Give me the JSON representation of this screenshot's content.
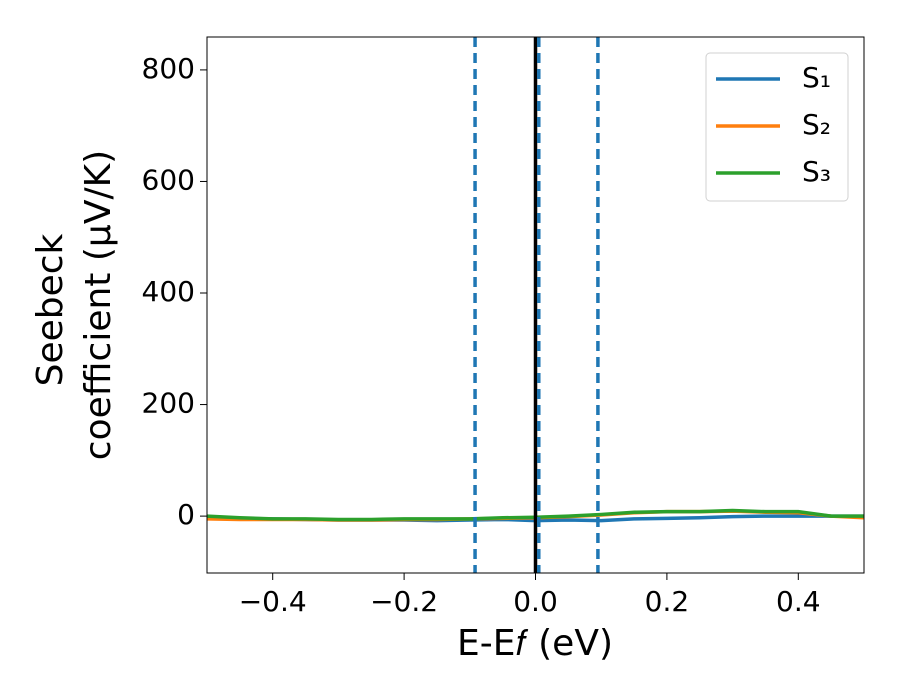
{
  "chart_data": {
    "type": "line",
    "xlabel": "E-E𝑓 (eV)",
    "ylabel": [
      "Seebeck",
      "coefficient  (μV/K)"
    ],
    "x": [
      -0.5,
      -0.45,
      -0.4,
      -0.35,
      -0.3,
      -0.25,
      -0.2,
      -0.15,
      -0.1,
      -0.05,
      0.0,
      0.05,
      0.1,
      0.15,
      0.2,
      0.25,
      0.3,
      0.35,
      0.4,
      0.45,
      0.5
    ],
    "series": [
      {
        "name": "S₁",
        "color": "#1f77b4",
        "values": [
          -3,
          -4,
          -5,
          -6,
          -7,
          -7,
          -7,
          -8,
          -7,
          -6,
          -8,
          -7,
          -8,
          -5,
          -4,
          -3,
          -1,
          0,
          0,
          0,
          0
        ]
      },
      {
        "name": "S₂",
        "color": "#ff7f0e",
        "values": [
          -5,
          -6,
          -6,
          -6,
          -7,
          -7,
          -6,
          -6,
          -5,
          -4,
          -3,
          -1,
          2,
          6,
          8,
          8,
          9,
          7,
          6,
          0,
          -3
        ]
      },
      {
        "name": "S₃",
        "color": "#2ca02c",
        "values": [
          0,
          -3,
          -5,
          -5,
          -6,
          -6,
          -5,
          -5,
          -5,
          -3,
          -2,
          0,
          3,
          7,
          8,
          8,
          10,
          8,
          8,
          0,
          0
        ]
      }
    ],
    "xlim": [
      -0.5,
      0.5
    ],
    "ylim": [
      -102,
      859
    ],
    "xticks": [
      {
        "value": -0.4,
        "label": "−0.4"
      },
      {
        "value": -0.2,
        "label": "−0.2"
      },
      {
        "value": 0.0,
        "label": "0.0"
      },
      {
        "value": 0.2,
        "label": "0.2"
      },
      {
        "value": 0.4,
        "label": "0.4"
      }
    ],
    "yticks": [
      0,
      200,
      400,
      600,
      800
    ],
    "vlines": [
      {
        "x": -0.092,
        "color": "#1f77b4",
        "dashed": true
      },
      {
        "x": 0.0,
        "color": "#000000",
        "dashed": false
      },
      {
        "x": 0.005,
        "color": "#1f77b4",
        "dashed": true
      },
      {
        "x": 0.095,
        "color": "#1f77b4",
        "dashed": true
      }
    ],
    "legend": "upper right"
  }
}
